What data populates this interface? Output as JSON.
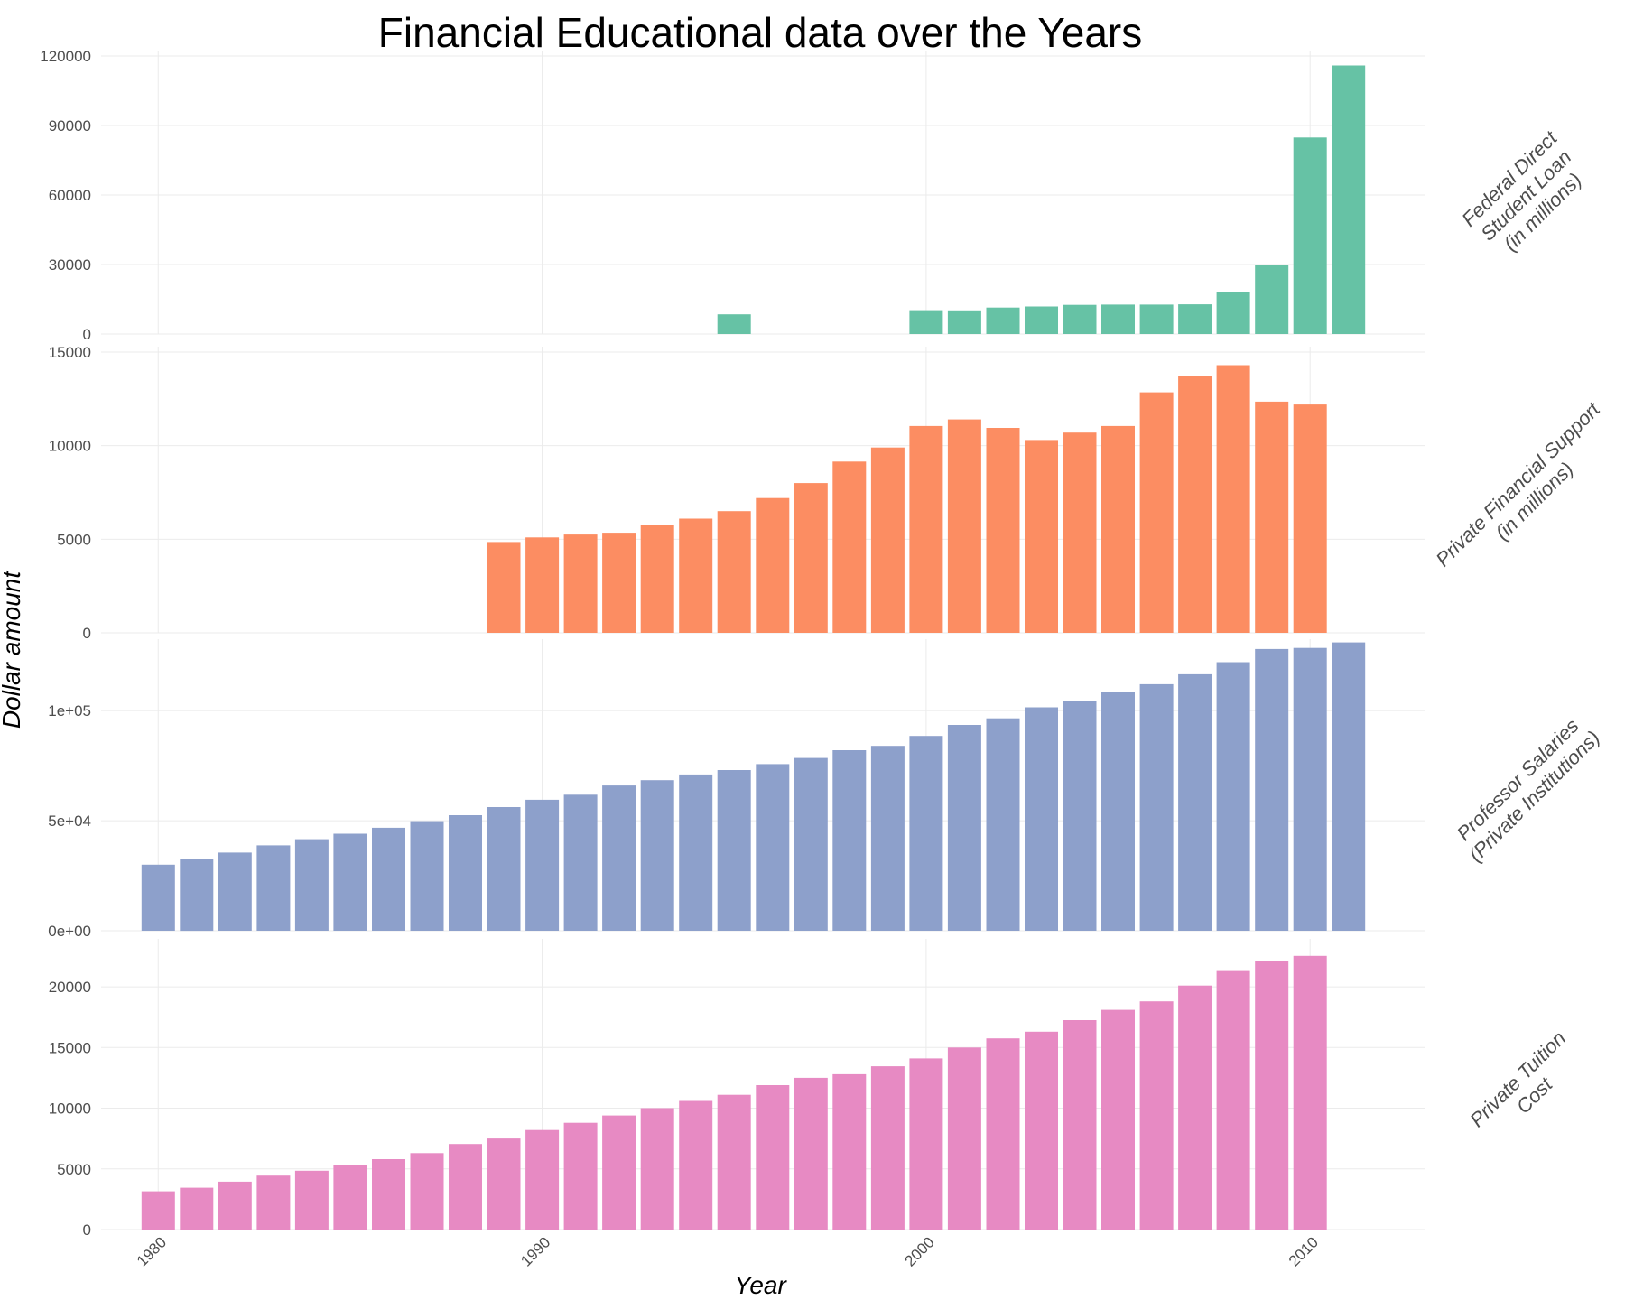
{
  "chart_data": {
    "type": "bar",
    "title": "Financial Educational data over the Years",
    "xlabel": "Year",
    "ylabel": "Dollar amount",
    "x_ticks": [
      "1980",
      "1990",
      "2000",
      "2010"
    ],
    "grid": true,
    "legend": "none",
    "facets": [
      {
        "label_lines": [
          "Federal Direct",
          "Student Loan",
          "(in millions)"
        ],
        "color": "#66c2a5",
        "ylim": [
          0,
          120000
        ],
        "y_ticks": [
          0,
          30000,
          60000,
          90000,
          120000
        ],
        "y_tick_labels": [
          "0",
          "30000",
          "60000",
          "90000",
          "120000"
        ],
        "years": [
          1995,
          2000,
          2001,
          2002,
          2003,
          2004,
          2005,
          2006,
          2007,
          2008,
          2009,
          2010,
          2011
        ],
        "values": [
          8500,
          10300,
          10200,
          11400,
          11900,
          12600,
          12700,
          12700,
          12800,
          18300,
          29900,
          84800,
          115900
        ]
      },
      {
        "label_lines": [
          "Private Financial Support",
          "(in millions)"
        ],
        "color": "#fc8d62",
        "ylim": [
          0,
          15000
        ],
        "y_ticks": [
          0,
          5000,
          10000,
          15000
        ],
        "y_tick_labels": [
          "0",
          "5000",
          "10000",
          "15000"
        ],
        "years": [
          1989,
          1990,
          1991,
          1992,
          1993,
          1994,
          1995,
          1996,
          1997,
          1998,
          1999,
          2000,
          2001,
          2002,
          2003,
          2004,
          2005,
          2006,
          2007,
          2008,
          2009,
          2010
        ],
        "values": [
          4850,
          5100,
          5250,
          5350,
          5750,
          6100,
          6500,
          7200,
          8000,
          9150,
          9900,
          11050,
          11400,
          10950,
          10300,
          10700,
          11050,
          12850,
          13700,
          14300,
          12350,
          12200
        ]
      },
      {
        "label_lines": [
          "Professor Salaries",
          "(Private Institutions)"
        ],
        "color": "#8da0cb",
        "ylim": [
          0,
          130000
        ],
        "y_ticks": [
          0,
          50000,
          100000
        ],
        "y_tick_labels": [
          "0e+00",
          "5e+04",
          "1e+05"
        ],
        "years": [
          1980,
          1981,
          1982,
          1983,
          1984,
          1985,
          1986,
          1987,
          1988,
          1989,
          1990,
          1991,
          1992,
          1993,
          1994,
          1995,
          1996,
          1997,
          1998,
          1999,
          2000,
          2001,
          2002,
          2003,
          2004,
          2005,
          2006,
          2007,
          2008,
          2009,
          2010,
          2011
        ],
        "values": [
          30000,
          32500,
          35500,
          38800,
          41600,
          44100,
          46800,
          49800,
          52500,
          56200,
          59500,
          61800,
          66000,
          68400,
          71000,
          73000,
          75700,
          78500,
          82000,
          84000,
          88500,
          93500,
          96500,
          101500,
          104500,
          108500,
          112000,
          116500,
          122000,
          128000,
          128500,
          131000
        ]
      },
      {
        "label_lines": [
          "Private Tuition",
          "Cost"
        ],
        "color": "#e78ac3",
        "ylim": [
          0,
          23500
        ],
        "y_ticks": [
          0,
          5000,
          10000,
          15000,
          20000
        ],
        "y_tick_labels": [
          "0",
          "5000",
          "10000",
          "15000",
          "20000"
        ],
        "years": [
          1980,
          1981,
          1982,
          1983,
          1984,
          1985,
          1986,
          1987,
          1988,
          1989,
          1990,
          1991,
          1992,
          1993,
          1994,
          1995,
          1996,
          1997,
          1998,
          1999,
          2000,
          2001,
          2002,
          2003,
          2004,
          2005,
          2006,
          2007,
          2008,
          2009,
          2010
        ],
        "values": [
          3150,
          3450,
          3950,
          4450,
          4850,
          5300,
          5800,
          6300,
          7050,
          7500,
          8200,
          8800,
          9400,
          10000,
          10600,
          11100,
          11900,
          12500,
          12800,
          13450,
          14100,
          15000,
          15750,
          16300,
          17250,
          18100,
          18800,
          20100,
          21300,
          22150,
          22550
        ]
      }
    ]
  }
}
